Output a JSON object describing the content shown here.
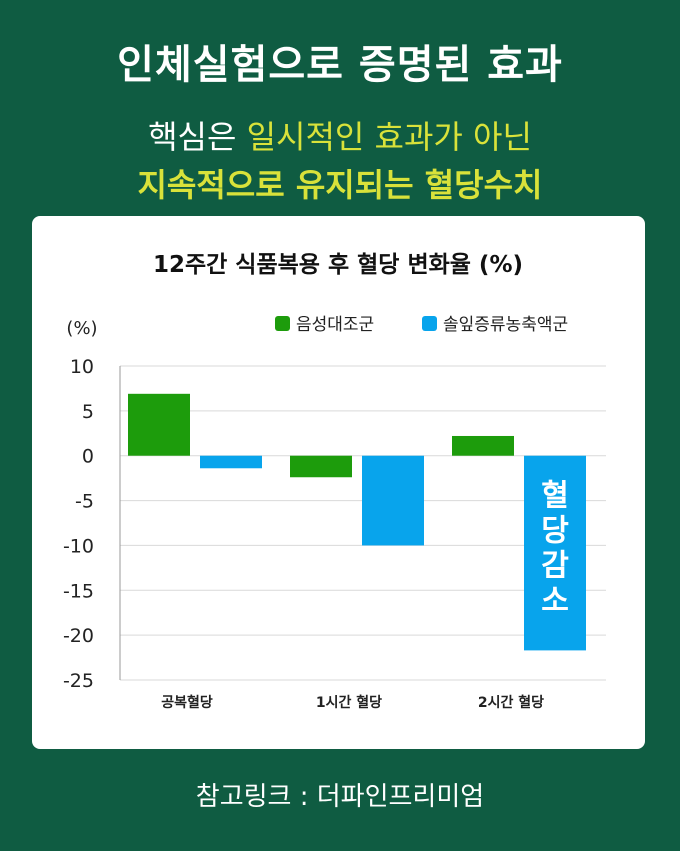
{
  "header": {
    "title": "인체실험으로 증명된 효과",
    "subtitle_normal": "핵심은 ",
    "subtitle_highlight": "일시적인 효과가 아닌",
    "subtitle2": "지속적으로 유지되는 혈당수치"
  },
  "footer": {
    "source": "참고링크 : 더파인프리미엄"
  },
  "colors": {
    "green": "#1d9c0c",
    "blue": "#08a4ec",
    "background": "#0f5c42",
    "highlight": "#d9e23a"
  },
  "chart_data": {
    "type": "bar",
    "title": "12주간 식품복용 후 혈당 변화율 (%)",
    "ylabel": "(%)",
    "xlabel": "",
    "ylim": [
      -25,
      10
    ],
    "yticks": [
      10,
      5,
      0,
      -5,
      -10,
      -15,
      -20,
      -25
    ],
    "grid": true,
    "legend_position": "top-right",
    "categories": [
      "공복혈당",
      "1시간 혈당",
      "2시간 혈당"
    ],
    "series": [
      {
        "name": "음성대조군",
        "color": "#1d9c0c",
        "values": [
          6.9,
          -2.4,
          2.2
        ]
      },
      {
        "name": "솔잎증류농축액군",
        "color": "#08a4ec",
        "values": [
          -1.4,
          -10.0,
          -21.7
        ]
      }
    ],
    "annotation": {
      "text": "혈당감소",
      "series": 1,
      "category": 2
    }
  }
}
